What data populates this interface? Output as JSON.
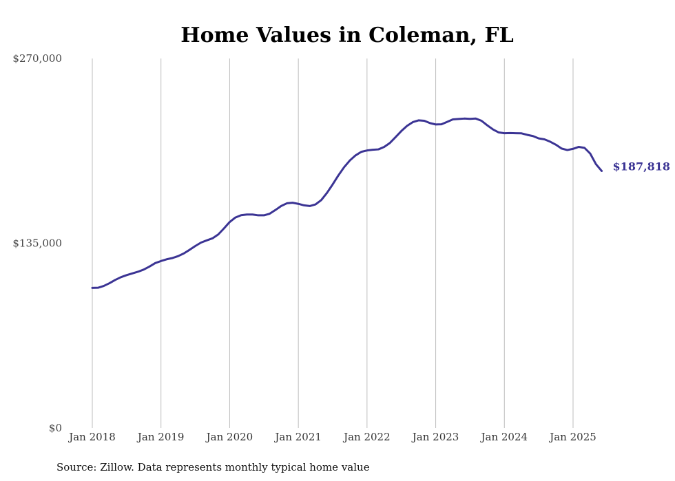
{
  "chart_data": {
    "type": "line",
    "title": "Home Values in Coleman, FL",
    "xlabel": "",
    "ylabel": "",
    "ylim": [
      0,
      270000
    ],
    "yticks": [
      0,
      135000,
      270000
    ],
    "ytick_labels": [
      "$0",
      "$135,000",
      "$270,000"
    ],
    "x_ticks": [
      "2018-01",
      "2019-01",
      "2020-01",
      "2021-01",
      "2022-01",
      "2023-01",
      "2024-01",
      "2025-01"
    ],
    "xtick_labels": [
      "Jan 2018",
      "Jan 2019",
      "Jan 2020",
      "Jan 2021",
      "Jan 2022",
      "Jan 2023",
      "Jan 2024",
      "Jan 2025"
    ],
    "x_start": "2018-01",
    "x_end": "2025-06",
    "grid": "vertical",
    "series": [
      {
        "color": "#3b3494",
        "x": [
          "2018-01",
          "2018-02",
          "2018-03",
          "2018-04",
          "2018-05",
          "2018-06",
          "2018-07",
          "2018-08",
          "2018-09",
          "2018-10",
          "2018-11",
          "2018-12",
          "2019-01",
          "2019-02",
          "2019-03",
          "2019-04",
          "2019-05",
          "2019-06",
          "2019-07",
          "2019-08",
          "2019-09",
          "2019-10",
          "2019-11",
          "2019-12",
          "2020-01",
          "2020-02",
          "2020-03",
          "2020-04",
          "2020-05",
          "2020-06",
          "2020-07",
          "2020-08",
          "2020-09",
          "2020-10",
          "2020-11",
          "2020-12",
          "2021-01",
          "2021-02",
          "2021-03",
          "2021-04",
          "2021-05",
          "2021-06",
          "2021-07",
          "2021-08",
          "2021-09",
          "2021-10",
          "2021-11",
          "2021-12",
          "2022-01",
          "2022-02",
          "2022-03",
          "2022-04",
          "2022-05",
          "2022-06",
          "2022-07",
          "2022-08",
          "2022-09",
          "2022-10",
          "2022-11",
          "2022-12",
          "2023-01",
          "2023-02",
          "2023-03",
          "2023-04",
          "2023-05",
          "2023-06",
          "2023-07",
          "2023-08",
          "2023-09",
          "2023-10",
          "2023-11",
          "2023-12",
          "2024-01",
          "2024-02",
          "2024-03",
          "2024-04",
          "2024-05",
          "2024-06",
          "2024-07",
          "2024-08",
          "2024-09",
          "2024-10",
          "2024-11",
          "2024-12",
          "2025-01",
          "2025-02",
          "2025-03",
          "2025-04",
          "2025-05",
          "2025-06"
        ],
        "values": [
          102400,
          102500,
          103800,
          105800,
          108200,
          110200,
          111700,
          113000,
          114200,
          115800,
          118000,
          120500,
          122000,
          123300,
          124200,
          125600,
          127600,
          130200,
          133000,
          135500,
          137100,
          138600,
          141400,
          145800,
          150500,
          153800,
          155500,
          156000,
          156000,
          155400,
          155400,
          156600,
          159300,
          162200,
          164200,
          164600,
          163800,
          162700,
          162200,
          163400,
          166500,
          171800,
          178000,
          184600,
          190600,
          195500,
          199200,
          201800,
          202800,
          203300,
          203600,
          205400,
          208300,
          212600,
          217000,
          220800,
          223500,
          224800,
          224500,
          222800,
          221800,
          221900,
          223700,
          225500,
          225800,
          226100,
          225900,
          226100,
          224500,
          221200,
          218200,
          216000,
          215400,
          215500,
          215400,
          215300,
          214200,
          213300,
          211600,
          210900,
          209200,
          207000,
          204200,
          203100,
          204000,
          205400,
          204700,
          200500,
          192800,
          187818
        ]
      }
    ],
    "end_label": "$187,818",
    "source": "Source: Zillow. Data represents monthly typical home value"
  }
}
